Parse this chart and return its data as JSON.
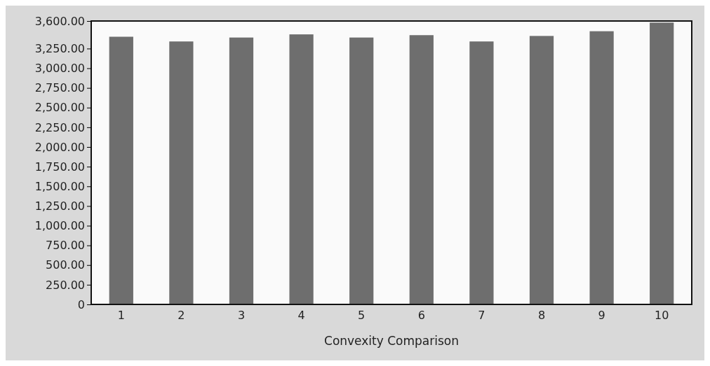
{
  "chart_data": {
    "type": "bar",
    "xlabel": "Convexity Comparison",
    "categories": [
      "1",
      "2",
      "3",
      "4",
      "5",
      "6",
      "7",
      "8",
      "9",
      "10"
    ],
    "values": [
      3400,
      3340,
      3390,
      3430,
      3390,
      3420,
      3340,
      3410,
      3470,
      3580
    ],
    "color": "#6e6e6e",
    "ylim": [
      0,
      3600
    ],
    "yticks": [
      {
        "value": 0,
        "label": "0"
      },
      {
        "value": 250,
        "label": "250.00"
      },
      {
        "value": 500,
        "label": "500.00"
      },
      {
        "value": 750,
        "label": "750.00"
      },
      {
        "value": 1000,
        "label": "1,000.00"
      },
      {
        "value": 1250,
        "label": "1,250.00"
      },
      {
        "value": 1500,
        "label": "1,500.00"
      },
      {
        "value": 1750,
        "label": "1,750.00"
      },
      {
        "value": 2000,
        "label": "2,000.00"
      },
      {
        "value": 2250,
        "label": "2,250.00"
      },
      {
        "value": 2500,
        "label": "2,500.00"
      },
      {
        "value": 2750,
        "label": "2,750.00"
      },
      {
        "value": 3000,
        "label": "3,000.00"
      },
      {
        "value": 3250,
        "label": "3,250.00"
      },
      {
        "value": 3600,
        "label": "3,600.00"
      }
    ],
    "grid": false
  }
}
